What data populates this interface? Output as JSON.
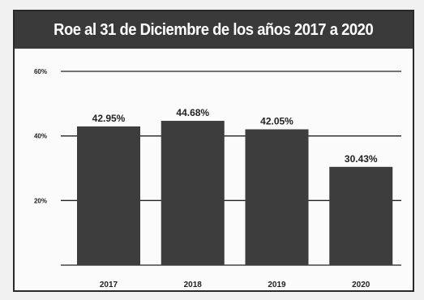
{
  "chart_data": {
    "type": "bar",
    "title": "Roe al 31 de Diciembre de los años 2017 a 2020",
    "categories": [
      "2017",
      "2018",
      "2019",
      "2020"
    ],
    "values": [
      42.95,
      44.68,
      42.05,
      30.43
    ],
    "data_labels": [
      "42.95%",
      "44.68%",
      "42.05%",
      "30.43%"
    ],
    "y_ticks": [
      {
        "value": 20,
        "label": "20%"
      },
      {
        "value": 40,
        "label": "40%"
      },
      {
        "value": 60,
        "label": "60%"
      }
    ],
    "ylim": [
      0,
      60
    ],
    "xlabel": "",
    "ylabel": "",
    "grid": true,
    "colors": {
      "bar": "#3d3d3d",
      "grid": "#222222",
      "title_bg": "#3a3a3a"
    }
  }
}
